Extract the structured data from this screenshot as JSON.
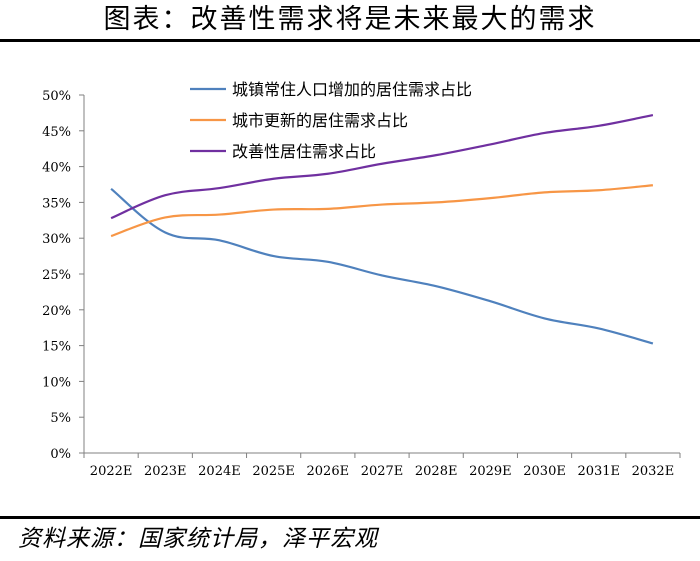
{
  "header": {
    "title": "图表：改善性需求将是未来最大的需求"
  },
  "footer": {
    "source": "资料来源：国家统计局，泽平宏观"
  },
  "chart_data": {
    "type": "line",
    "title": "图表：改善性需求将是未来最大的需求",
    "xlabel": "",
    "ylabel": "",
    "ylim": [
      0,
      50
    ],
    "yticks": [
      "0%",
      "5%",
      "10%",
      "15%",
      "20%",
      "25%",
      "30%",
      "35%",
      "40%",
      "45%",
      "50%"
    ],
    "categories": [
      "2022E",
      "2023E",
      "2024E",
      "2025E",
      "2026E",
      "2027E",
      "2028E",
      "2029E",
      "2030E",
      "2031E",
      "2032E"
    ],
    "legend_position": "top-center",
    "series": [
      {
        "name": "城镇常住人口增加的居住需求占比",
        "color": "#4f81bd",
        "values": [
          36.9,
          30.8,
          29.7,
          27.5,
          26.7,
          24.8,
          23.3,
          21.2,
          18.8,
          17.4,
          15.3
        ]
      },
      {
        "name": "城市更新的居住需求占比",
        "color": "#f79646",
        "values": [
          30.3,
          32.9,
          33.3,
          34.0,
          34.1,
          34.7,
          35.0,
          35.6,
          36.4,
          36.7,
          37.4
        ]
      },
      {
        "name": "改善性居住需求占比",
        "color": "#7030a0",
        "values": [
          32.8,
          36.0,
          37.0,
          38.3,
          39.0,
          40.4,
          41.6,
          43.1,
          44.7,
          45.7,
          47.2
        ]
      }
    ]
  }
}
